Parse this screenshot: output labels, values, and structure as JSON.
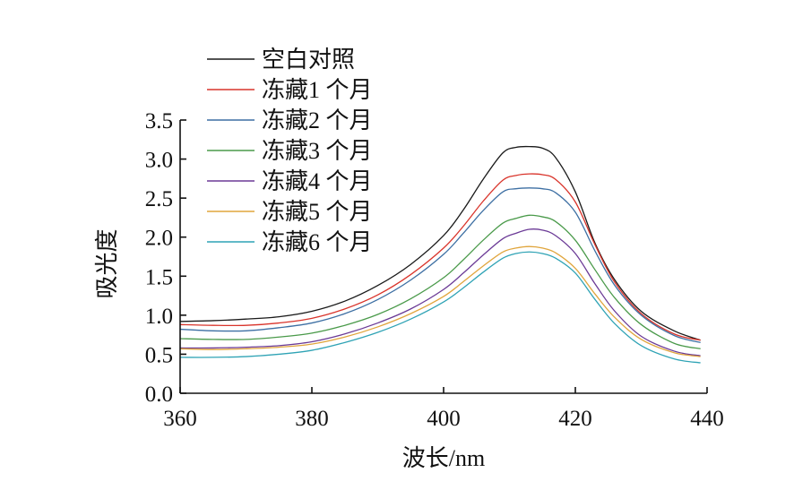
{
  "chart_data": {
    "type": "line",
    "xlabel": "波长/nm",
    "ylabel": "吸光度",
    "xlim": [
      360,
      440
    ],
    "ylim": [
      0,
      3.5
    ],
    "x_ticks": [
      360,
      380,
      400,
      420,
      440
    ],
    "x_tick_labels": [
      "360",
      "380",
      "400",
      "420",
      "440"
    ],
    "y_ticks": [
      0,
      0.5,
      1,
      1.5,
      2,
      2.5,
      3,
      3.5
    ],
    "y_tick_labels": [
      "0.0",
      "0.5",
      "1.0",
      "1.5",
      "2.0",
      "2.5",
      "3.0",
      "3.5"
    ],
    "grid": false,
    "legend_position": "top-left",
    "x": [
      360,
      365,
      370,
      375,
      380,
      385,
      390,
      395,
      400,
      403,
      406,
      409,
      411,
      413,
      415,
      417,
      420,
      423,
      426,
      430,
      435,
      439
    ],
    "series": [
      {
        "name": "空白对照",
        "color": "#1a1a1a",
        "values": [
          0.92,
          0.93,
          0.95,
          0.98,
          1.05,
          1.18,
          1.38,
          1.65,
          2.02,
          2.35,
          2.74,
          3.08,
          3.15,
          3.16,
          3.14,
          3.02,
          2.58,
          1.92,
          1.45,
          1.05,
          0.8,
          0.68
        ]
      },
      {
        "name": "冻藏1 个月",
        "color": "#d9342b",
        "values": [
          0.88,
          0.87,
          0.87,
          0.9,
          0.96,
          1.08,
          1.26,
          1.52,
          1.86,
          2.14,
          2.46,
          2.73,
          2.79,
          2.81,
          2.8,
          2.74,
          2.45,
          1.9,
          1.42,
          1.02,
          0.76,
          0.68
        ]
      },
      {
        "name": "冻藏2 个月",
        "color": "#3d6fa3",
        "values": [
          0.82,
          0.8,
          0.8,
          0.84,
          0.9,
          1.02,
          1.2,
          1.45,
          1.78,
          2.05,
          2.34,
          2.58,
          2.62,
          2.63,
          2.62,
          2.57,
          2.32,
          1.82,
          1.38,
          1.0,
          0.74,
          0.65
        ]
      },
      {
        "name": "冻藏3 个月",
        "color": "#4a9a4a",
        "values": [
          0.7,
          0.69,
          0.69,
          0.72,
          0.77,
          0.87,
          1.01,
          1.21,
          1.48,
          1.71,
          1.96,
          2.18,
          2.24,
          2.28,
          2.26,
          2.2,
          1.96,
          1.58,
          1.22,
          0.88,
          0.64,
          0.57
        ]
      },
      {
        "name": "冻藏4 个月",
        "color": "#6b3a96",
        "values": [
          0.58,
          0.58,
          0.59,
          0.61,
          0.66,
          0.76,
          0.9,
          1.08,
          1.33,
          1.54,
          1.77,
          1.98,
          2.05,
          2.1,
          2.09,
          2.02,
          1.79,
          1.4,
          1.05,
          0.73,
          0.54,
          0.48
        ]
      },
      {
        "name": "冻藏5 个月",
        "color": "#e0a53c",
        "values": [
          0.57,
          0.56,
          0.57,
          0.59,
          0.63,
          0.72,
          0.85,
          1.02,
          1.24,
          1.43,
          1.63,
          1.81,
          1.86,
          1.88,
          1.86,
          1.8,
          1.6,
          1.27,
          0.97,
          0.69,
          0.52,
          0.47
        ]
      },
      {
        "name": "冻藏6 个月",
        "color": "#2fa3b5",
        "values": [
          0.46,
          0.46,
          0.47,
          0.5,
          0.55,
          0.65,
          0.78,
          0.95,
          1.17,
          1.35,
          1.55,
          1.73,
          1.79,
          1.81,
          1.79,
          1.73,
          1.54,
          1.2,
          0.89,
          0.61,
          0.44,
          0.39
        ]
      }
    ]
  }
}
